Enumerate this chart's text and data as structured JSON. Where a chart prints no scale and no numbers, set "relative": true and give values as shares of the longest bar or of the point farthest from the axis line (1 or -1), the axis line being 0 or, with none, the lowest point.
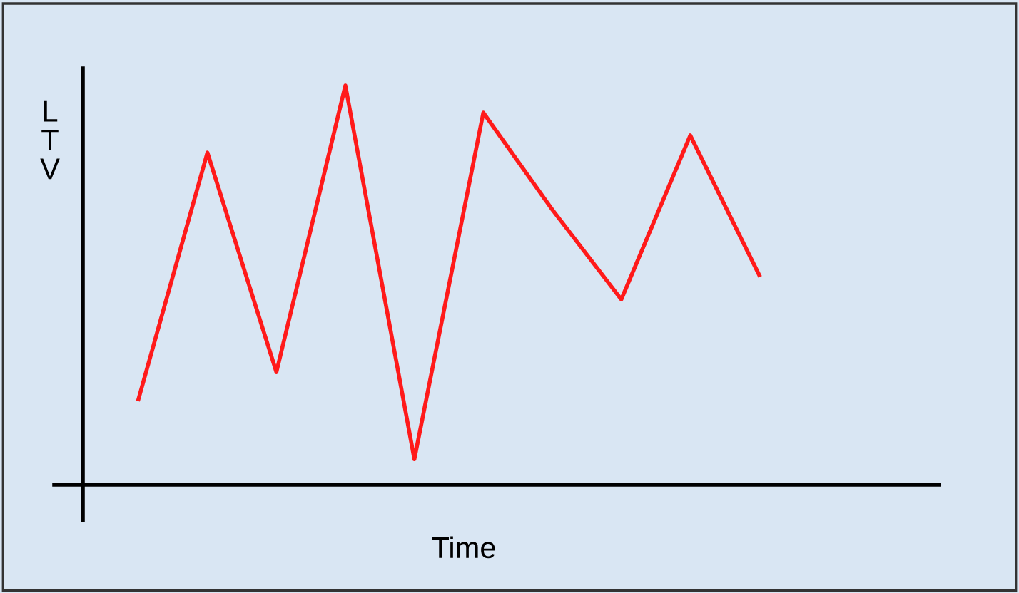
{
  "chart_data": {
    "type": "line",
    "relative": true,
    "xlabel": "Time",
    "ylabel": "LTV",
    "marker": "none",
    "line_style": "solid",
    "categories": [
      null,
      null,
      null,
      null,
      null,
      null,
      null,
      null,
      null,
      null
    ],
    "series": [
      {
        "color": "#ff1a1a",
        "values": [
          0.214,
          0.832,
          0.282,
          1,
          0.064,
          0.932,
          0.689,
          0.464,
          0.875,
          0.525
        ]
      }
    ]
  }
}
